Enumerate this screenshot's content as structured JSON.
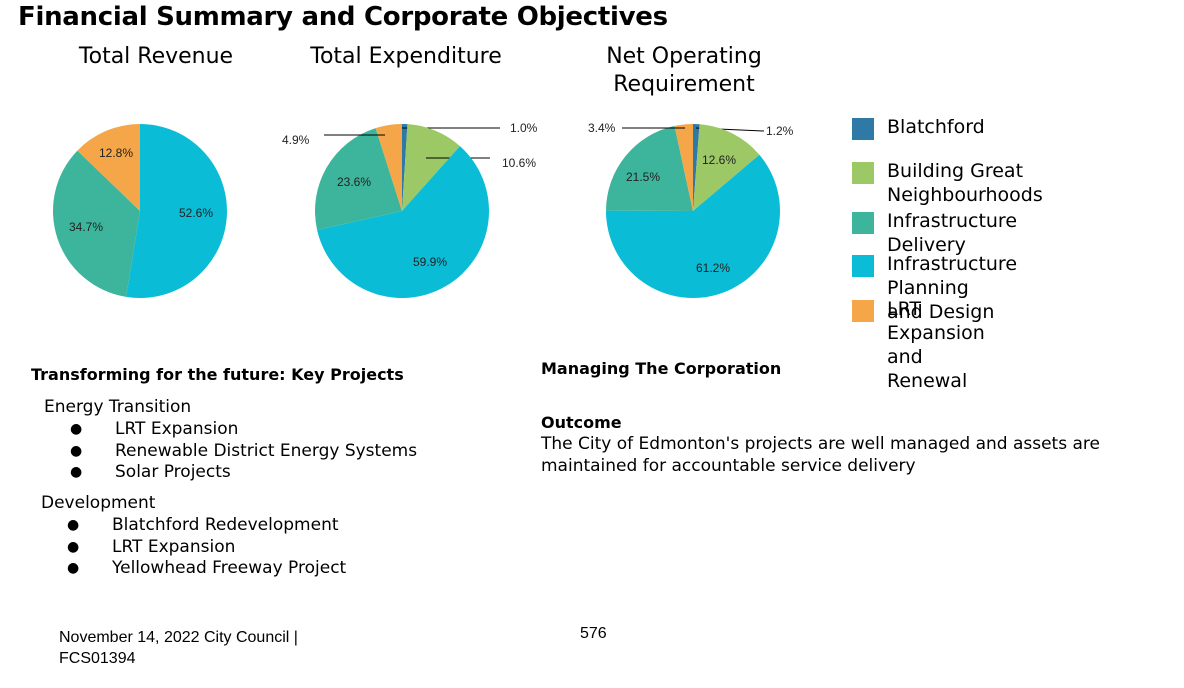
{
  "page_title": "Financial Summary and Corporate Objectives",
  "colors": {
    "Blatchford": "#2e79a6",
    "Building Great Neighbourhoods": "#9cc865",
    "Infrastructure Delivery": "#3db59c",
    "Infrastructure Planning and Design": "#0bbcd6",
    "LRT Expansion and Renewal": "#f5a649"
  },
  "legend": [
    {
      "label": "Blatchford",
      "color": "#2e79a6"
    },
    {
      "label": "Building Great\nNeighbourhoods",
      "color": "#9cc865"
    },
    {
      "label": "Infrastructure Delivery",
      "color": "#3db59c"
    },
    {
      "label": "Infrastructure Planning\nand Design",
      "color": "#0bbcd6"
    },
    {
      "label": "LRT Expansion and Renewal",
      "color": "#f5a649"
    }
  ],
  "chart_data": [
    {
      "type": "pie",
      "title": "Total Revenue",
      "slices": [
        {
          "name": "Infrastructure Planning and Design",
          "value": 52.6,
          "label": "52.6%"
        },
        {
          "name": "Infrastructure Delivery",
          "value": 34.7,
          "label": "34.7%"
        },
        {
          "name": "LRT Expansion and Renewal",
          "value": 12.8,
          "label": "12.8%"
        }
      ]
    },
    {
      "type": "pie",
      "title": "Total Expenditure",
      "slices": [
        {
          "name": "Blatchford",
          "value": 1.0,
          "label": "1.0%"
        },
        {
          "name": "Building Great Neighbourhoods",
          "value": 10.6,
          "label": "10.6%"
        },
        {
          "name": "Infrastructure Planning and Design",
          "value": 59.9,
          "label": "59.9%"
        },
        {
          "name": "Infrastructure Delivery",
          "value": 23.6,
          "label": "23.6%"
        },
        {
          "name": "LRT Expansion and Renewal",
          "value": 4.9,
          "label": "4.9%"
        }
      ]
    },
    {
      "type": "pie",
      "title": "Net Operating Requirement",
      "slices": [
        {
          "name": "Blatchford",
          "value": 1.2,
          "label": "1.2%"
        },
        {
          "name": "Building Great Neighbourhoods",
          "value": 12.6,
          "label": "12.6%"
        },
        {
          "name": "Infrastructure Planning and Design",
          "value": 61.2,
          "label": "61.2%"
        },
        {
          "name": "Infrastructure Delivery",
          "value": 21.5,
          "label": "21.5%"
        },
        {
          "name": "LRT Expansion and Renewal",
          "value": 3.4,
          "label": "3.4%"
        }
      ]
    }
  ],
  "key_projects": {
    "heading": "Transforming for the future: Key Projects",
    "groups": [
      {
        "name": "Energy Transition",
        "items": [
          "LRT Expansion",
          "Renewable District Energy Systems",
          "Solar Projects"
        ]
      },
      {
        "name": "Development",
        "items": [
          "Blatchford Redevelopment",
          "LRT Expansion",
          "Yellowhead Freeway Project"
        ]
      }
    ]
  },
  "corporation": {
    "heading": "Managing The Corporation",
    "outcome_label": "Outcome",
    "outcome_text": "The City of Edmonton's projects are well managed and assets are maintained for accountable service delivery"
  },
  "footer": {
    "text": "November 14, 2022 City Council | FCS01394",
    "page_number": "576"
  },
  "bullet_glyph": "●"
}
